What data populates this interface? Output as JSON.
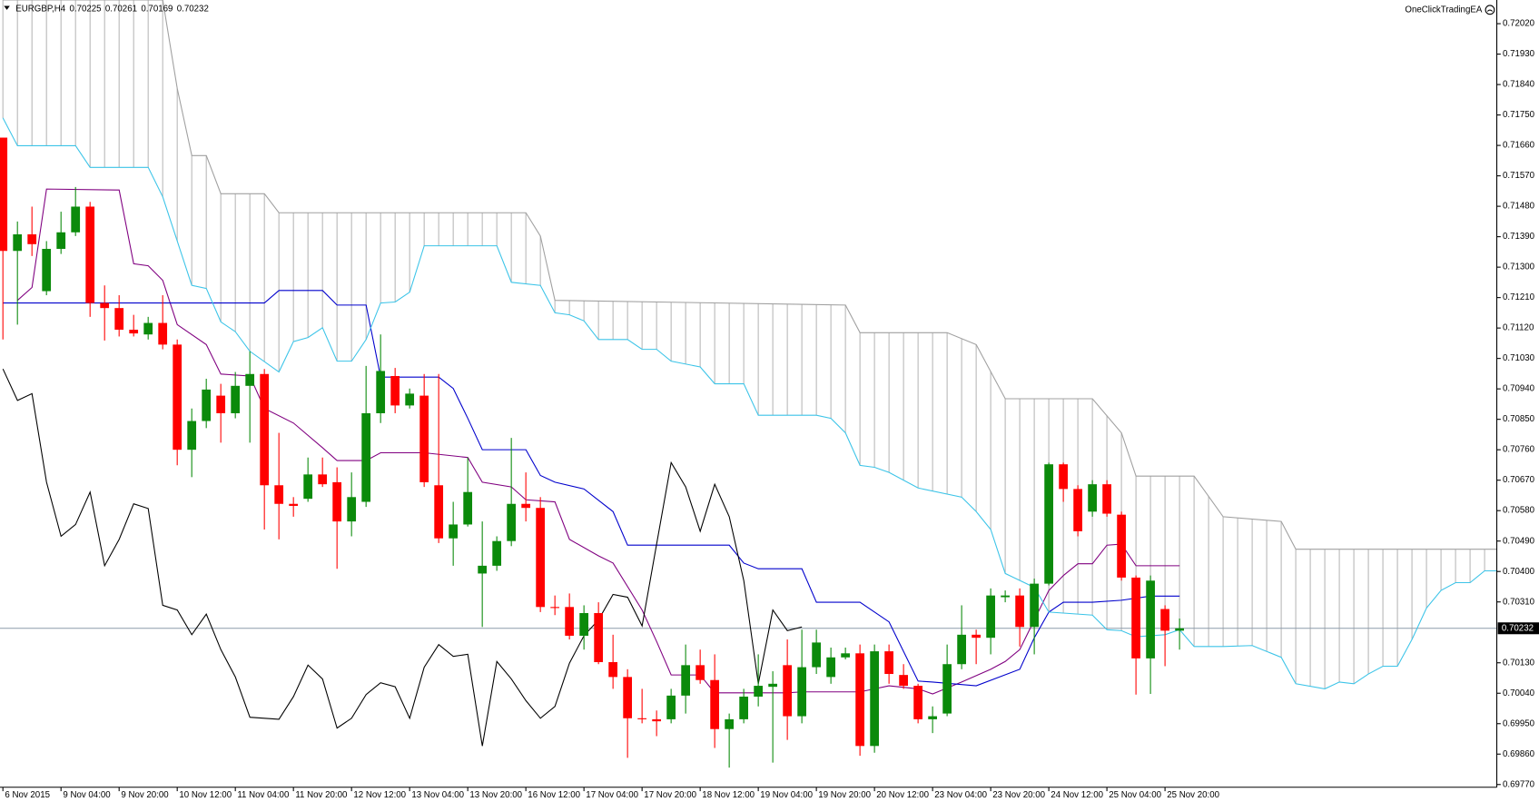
{
  "chart_data": {
    "type": "candlestick",
    "title": "EURGBP,H4",
    "ohlc_header": [
      0.70225,
      0.70261,
      0.70169,
      0.70232
    ],
    "expert": "OneClickTradingEA",
    "current_price": 0.70232,
    "xlim": [
      -0.2,
      102.84
    ],
    "ylim": [
      0.69762,
      0.7209
    ],
    "up_color": "#0b8a0b",
    "down_color": "#ff0000",
    "cloud_color": "#b8b8b8",
    "price_line_color": "#8c9bac",
    "yticks": [
      {
        "value": 0.7202,
        "label": "0.72020"
      },
      {
        "value": 0.7193,
        "label": "0.71930"
      },
      {
        "value": 0.7184,
        "label": "0.71840"
      },
      {
        "value": 0.7175,
        "label": "0.71750"
      },
      {
        "value": 0.7166,
        "label": "0.71660"
      },
      {
        "value": 0.7157,
        "label": "0.71570"
      },
      {
        "value": 0.7148,
        "label": "0.71480"
      },
      {
        "value": 0.7139,
        "label": "0.71390"
      },
      {
        "value": 0.713,
        "label": "0.71300"
      },
      {
        "value": 0.7121,
        "label": "0.71210"
      },
      {
        "value": 0.7112,
        "label": "0.71120"
      },
      {
        "value": 0.7103,
        "label": "0.71030"
      },
      {
        "value": 0.7094,
        "label": "0.70940"
      },
      {
        "value": 0.7085,
        "label": "0.70850"
      },
      {
        "value": 0.7076,
        "label": "0.70760"
      },
      {
        "value": 0.7067,
        "label": "0.70670"
      },
      {
        "value": 0.7058,
        "label": "0.70580"
      },
      {
        "value": 0.7049,
        "label": "0.70490"
      },
      {
        "value": 0.704,
        "label": "0.70400"
      },
      {
        "value": 0.7031,
        "label": "0.70310"
      },
      {
        "value": 0.7013,
        "label": "0.70130"
      },
      {
        "value": 0.7004,
        "label": "0.70040"
      },
      {
        "value": 0.6995,
        "label": "0.69950"
      },
      {
        "value": 0.6986,
        "label": "0.69860"
      },
      {
        "value": 0.6977,
        "label": "0.69770"
      }
    ],
    "xticks": [
      {
        "value": 0,
        "label": "6 Nov 2015"
      },
      {
        "value": 4,
        "label": "9 Nov 04:00"
      },
      {
        "value": 8,
        "label": "9 Nov 20:00"
      },
      {
        "value": 12,
        "label": "10 Nov 12:00"
      },
      {
        "value": 16,
        "label": "11 Nov 04:00"
      },
      {
        "value": 20,
        "label": "11 Nov 20:00"
      },
      {
        "value": 24,
        "label": "12 Nov 12:00"
      },
      {
        "value": 28,
        "label": "13 Nov 04:00"
      },
      {
        "value": 32,
        "label": "13 Nov 20:00"
      },
      {
        "value": 36,
        "label": "16 Nov 12:00"
      },
      {
        "value": 40,
        "label": "17 Nov 04:00"
      },
      {
        "value": 44,
        "label": "17 Nov 20:00"
      },
      {
        "value": 48,
        "label": "18 Nov 12:00"
      },
      {
        "value": 52,
        "label": "19 Nov 04:00"
      },
      {
        "value": 56,
        "label": "19 Nov 20:00"
      },
      {
        "value": 60,
        "label": "20 Nov 12:00"
      },
      {
        "value": 64,
        "label": "23 Nov 04:00"
      },
      {
        "value": 68,
        "label": "23 Nov 20:00"
      },
      {
        "value": 72,
        "label": "24 Nov 12:00"
      },
      {
        "value": 76,
        "label": "25 Nov 04:00"
      },
      {
        "value": 80,
        "label": "25 Nov 20:00"
      }
    ],
    "open": [
      0.71683,
      0.71348,
      0.71397,
      0.71229,
      0.71354,
      0.71403,
      0.71479,
      0.71194,
      0.71179,
      0.71115,
      0.71101,
      0.71135,
      0.71071,
      0.7076,
      0.70845,
      0.7092,
      0.70868,
      0.70949,
      0.70984,
      0.70655,
      0.706,
      0.70615,
      0.70687,
      0.70664,
      0.70548,
      0.70606,
      0.70868,
      0.70978,
      0.70891,
      0.7092,
      0.70655,
      0.70498,
      0.70539,
      0.70394,
      0.70417,
      0.7049,
      0.706,
      0.70588,
      0.70295,
      0.70295,
      0.7021,
      0.70277,
      0.70132,
      0.70088,
      0.69966,
      0.69963,
      0.69963,
      0.70033,
      0.70123,
      0.70079,
      0.69934,
      0.69963,
      0.7003,
      0.70059,
      0.70123,
      0.69972,
      0.70117,
      0.70088,
      0.70146,
      0.70158,
      0.69884,
      0.70164,
      0.70094,
      0.70062,
      0.69963,
      0.6998,
      0.70126,
      0.70213,
      0.70204,
      0.70324,
      0.70329,
      0.70236,
      0.70364,
      0.70717,
      0.70644,
      0.70577,
      0.70658,
      0.70568,
      0.70382,
      0.70143,
      0.70289,
      0.70225
    ],
    "high": [
      0.71683,
      0.71435,
      0.71479,
      0.71377,
      0.71464,
      0.71537,
      0.71493,
      0.71246,
      0.71217,
      0.71159,
      0.71153,
      0.71217,
      0.71086,
      0.70882,
      0.7097,
      0.70955,
      0.7099,
      0.71051,
      0.70999,
      0.7081,
      0.7062,
      0.70737,
      0.70737,
      0.70708,
      0.70693,
      0.71008,
      0.71101,
      0.71002,
      0.70941,
      0.70984,
      0.70984,
      0.70606,
      0.70737,
      0.70548,
      0.70504,
      0.70795,
      0.70693,
      0.7062,
      0.70329,
      0.70335,
      0.703,
      0.70309,
      0.70213,
      0.70111,
      0.70053,
      0.69989,
      0.70053,
      0.70184,
      0.70169,
      0.70155,
      0.6998,
      0.70053,
      0.70155,
      0.70105,
      0.70199,
      0.70228,
      0.70228,
      0.70175,
      0.70175,
      0.70184,
      0.70184,
      0.70184,
      0.70126,
      0.70068,
      0.70001,
      0.70184,
      0.703,
      0.70228,
      0.7035,
      0.70344,
      0.7035,
      0.70379,
      0.70722,
      0.70722,
      0.70655,
      0.7067,
      0.7067,
      0.70577,
      0.70388,
      0.70388,
      0.703,
      0.70261
    ],
    "low": [
      0.71086,
      0.7113,
      0.71333,
      0.71217,
      0.71339,
      0.71392,
      0.71153,
      0.71083,
      0.71095,
      0.71095,
      0.71086,
      0.71057,
      0.70714,
      0.70679,
      0.70824,
      0.70781,
      0.70853,
      0.70781,
      0.70524,
      0.70495,
      0.70562,
      0.70606,
      0.7065,
      0.70408,
      0.70504,
      0.70591,
      0.70839,
      0.70868,
      0.70882,
      0.7065,
      0.70484,
      0.70417,
      0.70533,
      0.70236,
      0.70402,
      0.70475,
      0.70548,
      0.7028,
      0.70271,
      0.70199,
      0.70169,
      0.70126,
      0.70053,
      0.69849,
      0.69951,
      0.69913,
      0.69951,
      0.6998,
      0.70068,
      0.69878,
      0.6982,
      0.69951,
      0.70001,
      0.69835,
      0.69902,
      0.69951,
      0.70097,
      0.70068,
      0.7014,
      0.69855,
      0.69864,
      0.70068,
      0.70053,
      0.69951,
      0.69922,
      0.69972,
      0.70111,
      0.70126,
      0.70155,
      0.70309,
      0.70178,
      0.70155,
      0.70359,
      0.70606,
      0.70504,
      0.70562,
      0.70562,
      0.70373,
      0.70036,
      0.70038,
      0.7012,
      0.70169
    ],
    "close": [
      0.71348,
      0.71397,
      0.71368,
      0.71354,
      0.71403,
      0.71479,
      0.71194,
      0.71179,
      0.71115,
      0.71104,
      0.71135,
      0.71071,
      0.7076,
      0.70845,
      0.70938,
      0.70868,
      0.70949,
      0.70984,
      0.70655,
      0.706,
      0.70594,
      0.70687,
      0.70658,
      0.70548,
      0.7062,
      0.70868,
      0.70993,
      0.70891,
      0.70926,
      0.70664,
      0.70498,
      0.70539,
      0.70635,
      0.70417,
      0.7049,
      0.706,
      0.70588,
      0.70295,
      0.70292,
      0.7021,
      0.70277,
      0.70132,
      0.70088,
      0.69966,
      0.69963,
      0.69957,
      0.70033,
      0.70123,
      0.70079,
      0.69934,
      0.69963,
      0.7003,
      0.70062,
      0.70068,
      0.69972,
      0.70117,
      0.7019,
      0.70146,
      0.70158,
      0.69884,
      0.70164,
      0.70097,
      0.70062,
      0.69963,
      0.69972,
      0.70126,
      0.70213,
      0.70204,
      0.70329,
      0.70329,
      0.70236,
      0.70364,
      0.70717,
      0.70644,
      0.70519,
      0.70658,
      0.70571,
      0.70382,
      0.70143,
      0.70373,
      0.70225,
      0.70232
    ],
    "lines": [
      {
        "color": "#800080",
        "x": [
          1,
          2,
          3,
          8,
          9,
          10,
          11,
          12,
          14,
          15,
          17,
          18,
          20,
          22,
          23,
          25,
          26,
          29,
          32,
          33,
          35,
          36,
          38,
          39,
          41,
          42,
          44,
          45,
          46,
          48,
          49,
          54,
          55,
          59,
          61,
          63,
          64,
          66,
          68,
          69,
          70,
          72,
          73,
          74,
          75,
          76,
          77,
          78,
          81
        ],
        "values": [
          0.71202,
          0.7124,
          0.71531,
          0.71528,
          0.7131,
          0.71304,
          0.71261,
          0.7113,
          0.71071,
          0.70984,
          0.70978,
          0.70882,
          0.70839,
          0.70766,
          0.70728,
          0.70728,
          0.70751,
          0.70751,
          0.70737,
          0.70664,
          0.7065,
          0.70612,
          0.70606,
          0.70495,
          0.70446,
          0.70425,
          0.70286,
          0.70193,
          0.70094,
          0.70094,
          0.70041,
          0.70041,
          0.70044,
          0.70044,
          0.70062,
          0.70053,
          0.70038,
          0.70073,
          0.70111,
          0.70134,
          0.70169,
          0.70344,
          0.70388,
          0.70423,
          0.70423,
          0.70478,
          0.70481,
          0.70417,
          0.70417
        ]
      },
      {
        "color": "#0000cc",
        "x": [
          0,
          18,
          19,
          22,
          23,
          25,
          26,
          30,
          31,
          32,
          33,
          36,
          37,
          38,
          40,
          42,
          43,
          50,
          51,
          52,
          55,
          56,
          59,
          61,
          63,
          64,
          67,
          70,
          71,
          72,
          73,
          75,
          77,
          79,
          81
        ],
        "values": [
          0.71194,
          0.71194,
          0.71231,
          0.71231,
          0.71188,
          0.71188,
          0.70975,
          0.70975,
          0.70941,
          0.70853,
          0.7076,
          0.7076,
          0.70684,
          0.70664,
          0.70644,
          0.70577,
          0.70478,
          0.70478,
          0.70425,
          0.70408,
          0.70408,
          0.70309,
          0.70309,
          0.70251,
          0.70076,
          0.70073,
          0.70062,
          0.70111,
          0.70204,
          0.7028,
          0.70309,
          0.70309,
          0.70315,
          0.70327,
          0.70327
        ]
      },
      {
        "color": "#000000",
        "x": [
          0,
          1,
          2,
          3,
          4,
          5,
          6,
          7,
          8,
          9,
          10,
          11,
          12,
          13,
          14,
          15,
          16,
          17,
          18,
          19,
          20,
          21,
          22,
          23,
          24,
          25,
          26,
          27,
          28,
          29,
          30,
          31,
          32,
          33,
          34,
          35,
          36,
          37,
          38,
          39,
          40,
          41,
          42,
          43,
          44,
          45,
          46,
          47,
          48,
          49,
          50,
          51,
          52,
          53,
          54,
          55
        ],
        "values": [
          0.70999,
          0.70906,
          0.70926,
          0.70664,
          0.70504,
          0.70539,
          0.70635,
          0.70417,
          0.70495,
          0.706,
          0.70586,
          0.703,
          0.70286,
          0.70213,
          0.70274,
          0.70169,
          0.70088,
          0.69969,
          0.69966,
          0.69963,
          0.7003,
          0.70123,
          0.70082,
          0.69937,
          0.69966,
          0.70036,
          0.70071,
          0.70059,
          0.69966,
          0.70117,
          0.70184,
          0.70149,
          0.70155,
          0.69884,
          0.70134,
          0.70082,
          0.70018,
          0.69966,
          0.70001,
          0.70129,
          0.7021,
          0.70257,
          0.70332,
          0.70324,
          0.70239,
          0.70481,
          0.70722,
          0.7065,
          0.70519,
          0.70658,
          0.70562,
          0.70373,
          0.70068,
          0.70286,
          0.70225,
          0.70236
        ]
      },
      {
        "color": "#3cc4e8",
        "cloud": true,
        "x": [
          0,
          1,
          5,
          6,
          10,
          11,
          13,
          14,
          15,
          16,
          17,
          19,
          20,
          21,
          22,
          23,
          24,
          25,
          26,
          27,
          28,
          29,
          34,
          35,
          37,
          38,
          39,
          40,
          41,
          43,
          44,
          45,
          46,
          48,
          49,
          51,
          52,
          56,
          57,
          58,
          59,
          60,
          61,
          63,
          66,
          67,
          68,
          69,
          71,
          72,
          75,
          76,
          77,
          78,
          80,
          81,
          82,
          84,
          86,
          88,
          89,
          91,
          92,
          93,
          94,
          95,
          96,
          97,
          98,
          99,
          100,
          101,
          102,
          103
        ],
        "values": [
          0.71741,
          0.71659,
          0.71659,
          0.71595,
          0.71595,
          0.71508,
          0.71246,
          0.71237,
          0.71138,
          0.71109,
          0.71051,
          0.7099,
          0.7108,
          0.71092,
          0.71121,
          0.71022,
          0.71022,
          0.71086,
          0.71194,
          0.71197,
          0.71226,
          0.71363,
          0.71363,
          0.71255,
          0.71246,
          0.71165,
          0.71159,
          0.71141,
          0.71086,
          0.71086,
          0.71057,
          0.71057,
          0.71022,
          0.71005,
          0.70955,
          0.70955,
          0.70862,
          0.70862,
          0.70853,
          0.7081,
          0.70714,
          0.70708,
          0.70693,
          0.70647,
          0.7062,
          0.70577,
          0.70524,
          0.70394,
          0.70353,
          0.7028,
          0.70271,
          0.70228,
          0.70225,
          0.70207,
          0.70213,
          0.70228,
          0.70178,
          0.70178,
          0.70181,
          0.70146,
          0.70068,
          0.70053,
          0.70073,
          0.70068,
          0.70097,
          0.7012,
          0.7012,
          0.70199,
          0.70292,
          0.70344,
          0.70367,
          0.70367,
          0.70402,
          0.70402
        ]
      },
      {
        "color": "#a0a0a0",
        "cloud": true,
        "x": [
          0,
          11,
          12,
          13,
          14,
          15,
          18,
          19,
          36,
          37,
          38,
          58,
          59,
          65,
          67,
          69,
          75,
          77,
          78,
          82,
          84,
          88,
          89,
          103
        ],
        "values": [
          0.7209,
          0.7209,
          0.71828,
          0.7163,
          0.7163,
          0.71517,
          0.71517,
          0.71461,
          0.71461,
          0.71392,
          0.71202,
          0.71188,
          0.71106,
          0.71106,
          0.71071,
          0.70911,
          0.70911,
          0.7081,
          0.70682,
          0.70682,
          0.70562,
          0.70548,
          0.70466,
          0.70466
        ]
      }
    ]
  }
}
